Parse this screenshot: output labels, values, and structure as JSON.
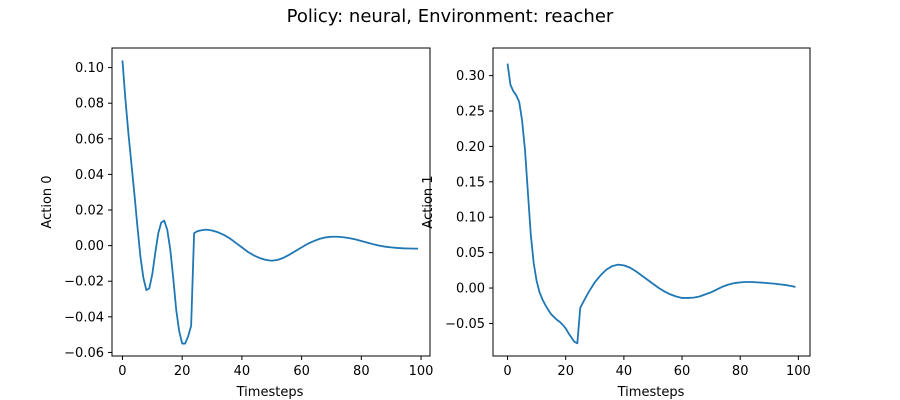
{
  "title": "Policy: neural, Environment: reacher",
  "chart_data": [
    {
      "type": "line",
      "xlabel": "Timesteps",
      "ylabel": "Action 0",
      "xlim": [
        -3.5,
        103
      ],
      "ylim": [
        -0.062,
        0.111
      ],
      "xticks": [
        0,
        20,
        40,
        60,
        80,
        100
      ],
      "xtick_labels": [
        "0",
        "20",
        "40",
        "60",
        "80",
        "100"
      ],
      "yticks": [
        -0.06,
        -0.04,
        -0.02,
        0.0,
        0.02,
        0.04,
        0.06,
        0.08,
        0.1
      ],
      "ytick_labels": [
        "−0.06",
        "−0.04",
        "−0.02",
        "0.00",
        "0.02",
        "0.04",
        "0.06",
        "0.08",
        "0.10"
      ],
      "grid": false,
      "series": [
        {
          "color": "#1f77b4",
          "x": [
            0,
            1,
            2,
            3,
            4,
            5,
            6,
            7,
            8,
            9,
            10,
            11,
            12,
            13,
            14,
            15,
            16,
            17,
            18,
            19,
            20,
            21,
            22,
            23,
            24,
            25,
            26,
            28,
            30,
            32,
            34,
            36,
            38,
            40,
            42,
            44,
            46,
            48,
            50,
            52,
            54,
            56,
            58,
            60,
            62,
            64,
            66,
            68,
            70,
            72,
            74,
            76,
            78,
            80,
            82,
            84,
            86,
            88,
            90,
            92,
            94,
            96,
            98,
            99
          ],
          "y": [
            0.104,
            0.082,
            0.063,
            0.046,
            0.029,
            0.011,
            -0.006,
            -0.018,
            -0.025,
            -0.024,
            -0.016,
            -0.004,
            0.007,
            0.013,
            0.014,
            0.009,
            -0.002,
            -0.018,
            -0.036,
            -0.048,
            -0.055,
            -0.055,
            -0.051,
            -0.045,
            0.007,
            0.008,
            0.0085,
            0.009,
            0.0085,
            0.0075,
            0.006,
            0.004,
            0.0015,
            -0.001,
            -0.0035,
            -0.0055,
            -0.007,
            -0.008,
            -0.0085,
            -0.008,
            -0.0068,
            -0.005,
            -0.003,
            -0.001,
            0.001,
            0.0025,
            0.0038,
            0.0046,
            0.005,
            0.005,
            0.0047,
            0.0042,
            0.0035,
            0.0026,
            0.0017,
            0.0008,
            0.0,
            -0.0006,
            -0.001,
            -0.0013,
            -0.0015,
            -0.0016,
            -0.0017,
            -0.0017
          ]
        }
      ]
    },
    {
      "type": "line",
      "xlabel": "Timesteps",
      "ylabel": "Action 1",
      "xlim": [
        -5,
        104
      ],
      "ylim": [
        -0.096,
        0.339
      ],
      "xticks": [
        0,
        20,
        40,
        60,
        80,
        100
      ],
      "xtick_labels": [
        "0",
        "20",
        "40",
        "60",
        "80",
        "100"
      ],
      "yticks": [
        -0.05,
        0.0,
        0.05,
        0.1,
        0.15,
        0.2,
        0.25,
        0.3
      ],
      "ytick_labels": [
        "−0.05",
        "0.00",
        "0.05",
        "0.10",
        "0.15",
        "0.20",
        "0.25",
        "0.30"
      ],
      "grid": false,
      "series": [
        {
          "color": "#1f77b4",
          "x": [
            0,
            1,
            2,
            3,
            4,
            5,
            6,
            7,
            8,
            9,
            10,
            11,
            12,
            13,
            14,
            15,
            16,
            17,
            18,
            19,
            20,
            21,
            22,
            23,
            24,
            25,
            26,
            28,
            30,
            32,
            34,
            36,
            38,
            40,
            42,
            44,
            46,
            48,
            50,
            52,
            54,
            56,
            58,
            60,
            62,
            64,
            66,
            68,
            70,
            72,
            74,
            76,
            78,
            80,
            82,
            84,
            86,
            88,
            90,
            92,
            94,
            96,
            98,
            99
          ],
          "y": [
            0.317,
            0.287,
            0.278,
            0.272,
            0.263,
            0.237,
            0.195,
            0.135,
            0.075,
            0.035,
            0.01,
            -0.006,
            -0.016,
            -0.024,
            -0.031,
            -0.037,
            -0.041,
            -0.045,
            -0.048,
            -0.052,
            -0.057,
            -0.064,
            -0.07,
            -0.076,
            -0.078,
            -0.028,
            -0.02,
            -0.005,
            0.008,
            0.018,
            0.026,
            0.031,
            0.033,
            0.032,
            0.029,
            0.024,
            0.018,
            0.012,
            0.006,
            0.0,
            -0.005,
            -0.009,
            -0.012,
            -0.014,
            -0.014,
            -0.0135,
            -0.012,
            -0.009,
            -0.006,
            -0.002,
            0.002,
            0.005,
            0.007,
            0.008,
            0.0085,
            0.0085,
            0.008,
            0.0075,
            0.0068,
            0.006,
            0.005,
            0.004,
            0.0025,
            0.0015
          ]
        }
      ]
    }
  ]
}
